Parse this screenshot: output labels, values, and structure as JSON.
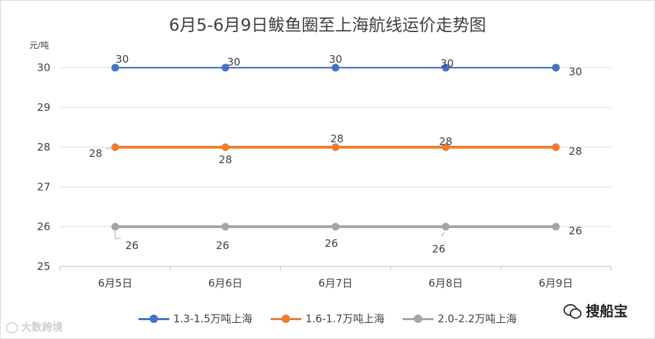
{
  "chart_data": {
    "type": "line",
    "title": "6月5-6月9日鲅鱼圈至上海航线运价走势图",
    "ylabel": "元/吨",
    "xlabel": "",
    "categories": [
      "6月5日",
      "6月6日",
      "6月7日",
      "6月8日",
      "6月9日"
    ],
    "ylim": [
      25,
      30
    ],
    "yticks": [
      25,
      26,
      27,
      28,
      29,
      30
    ],
    "grid": true,
    "legend": "bottom",
    "series": [
      {
        "name": "1.3-1.5万吨上海",
        "color": "#4472c4",
        "values": [
          30,
          30,
          30,
          30,
          30
        ]
      },
      {
        "name": "1.6-1.7万吨上海",
        "color": "#ed7d31",
        "values": [
          28,
          28,
          28,
          28,
          28
        ]
      },
      {
        "name": "2.0-2.2万吨上海",
        "color": "#a5a5a5",
        "values": [
          26,
          26,
          26,
          26,
          26
        ]
      }
    ]
  },
  "watermarks": {
    "left_text": "大数跨境",
    "left_icon": "weibo-icon",
    "right_text": "搜船宝",
    "right_icon": "wechat-icon"
  }
}
